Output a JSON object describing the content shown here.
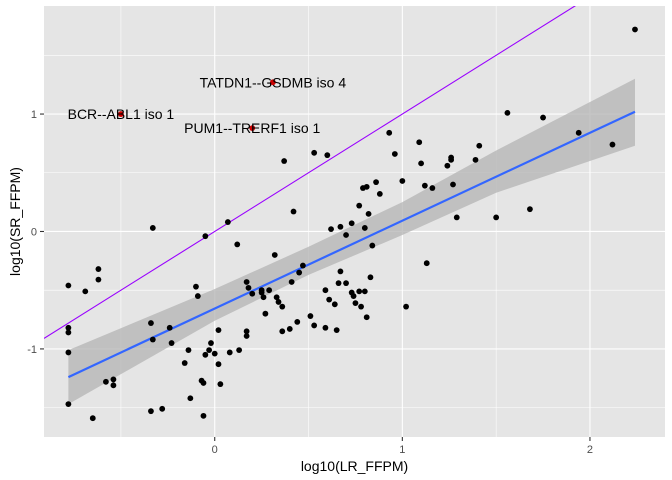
{
  "chart_data": {
    "type": "scatter",
    "xlabel": "log10(LR_FFPM)",
    "ylabel": "log10(SR_FFPM)",
    "xlim": [
      -0.91,
      2.4
    ],
    "ylim": [
      -1.75,
      1.92
    ],
    "x_ticks": [
      0,
      1,
      2
    ],
    "x_tick_labels": [
      "0",
      "1",
      "2"
    ],
    "y_ticks": [
      -1,
      0,
      1
    ],
    "y_tick_labels": [
      "-1",
      "0",
      "1"
    ],
    "grid": true,
    "panel_background": "#e5e5e5",
    "grid_color": "#ffffff",
    "point_color": "#000000",
    "highlight_color": "#cc0000",
    "reference_line": {
      "slope": 1,
      "intercept": 0,
      "color": "#9900ff"
    },
    "fit_line": {
      "x0": -0.78,
      "y0": -1.24,
      "x1": 2.24,
      "y1": 1.02,
      "color": "#3366ff"
    },
    "confidence_band": {
      "color": "#b3b3b3",
      "upper": [
        [
          -0.78,
          -1.01
        ],
        [
          0.0,
          -0.49
        ],
        [
          0.5,
          -0.13
        ],
        [
          1.0,
          0.25
        ],
        [
          1.5,
          0.69
        ],
        [
          2.24,
          1.3
        ]
      ],
      "lower": [
        [
          -0.78,
          -1.47
        ],
        [
          0.0,
          -0.76
        ],
        [
          0.5,
          -0.37
        ],
        [
          1.0,
          -0.03
        ],
        [
          1.5,
          0.33
        ],
        [
          2.24,
          0.73
        ]
      ]
    },
    "points": [
      [
        -0.78,
        -0.46
      ],
      [
        -0.78,
        -0.82
      ],
      [
        -0.78,
        -0.86
      ],
      [
        -0.78,
        -1.03
      ],
      [
        -0.78,
        -1.47
      ],
      [
        -0.69,
        -0.51
      ],
      [
        -0.62,
        -0.32
      ],
      [
        -0.62,
        -0.41
      ],
      [
        -0.58,
        -1.28
      ],
      [
        -0.54,
        -1.26
      ],
      [
        -0.54,
        -1.31
      ],
      [
        -0.65,
        -1.59
      ],
      [
        -0.33,
        0.03
      ],
      [
        -0.34,
        -0.78
      ],
      [
        -0.33,
        -0.92
      ],
      [
        -0.34,
        -1.53
      ],
      [
        -0.28,
        -1.51
      ],
      [
        -0.24,
        -0.82
      ],
      [
        -0.23,
        -0.95
      ],
      [
        -0.16,
        -1.12
      ],
      [
        -0.14,
        -1.01
      ],
      [
        -0.13,
        -1.42
      ],
      [
        -0.1,
        -0.47
      ],
      [
        -0.09,
        -0.55
      ],
      [
        -0.07,
        -1.27
      ],
      [
        -0.06,
        -1.29
      ],
      [
        -0.06,
        -1.57
      ],
      [
        -0.05,
        -0.04
      ],
      [
        -0.05,
        -1.05
      ],
      [
        -0.03,
        -1.01
      ],
      [
        -0.02,
        -0.95
      ],
      [
        0.0,
        -1.04
      ],
      [
        0.02,
        -0.84
      ],
      [
        0.02,
        -1.13
      ],
      [
        0.03,
        -1.3
      ],
      [
        0.07,
        0.08
      ],
      [
        0.08,
        -1.03
      ],
      [
        0.12,
        -0.11
      ],
      [
        0.13,
        -1.01
      ],
      [
        0.17,
        -0.85
      ],
      [
        0.17,
        -0.89
      ],
      [
        0.17,
        -0.43
      ],
      [
        0.18,
        -0.48
      ],
      [
        0.2,
        -0.53
      ],
      [
        0.25,
        -0.5
      ],
      [
        0.25,
        -0.52
      ],
      [
        0.26,
        -0.56
      ],
      [
        0.27,
        -0.7
      ],
      [
        0.29,
        -0.5
      ],
      [
        0.32,
        -0.2
      ],
      [
        0.33,
        -0.56
      ],
      [
        0.34,
        -0.6
      ],
      [
        0.36,
        -0.64
      ],
      [
        0.36,
        -0.85
      ],
      [
        0.37,
        0.6
      ],
      [
        0.4,
        -0.83
      ],
      [
        0.41,
        -0.43
      ],
      [
        0.42,
        0.17
      ],
      [
        0.44,
        -0.77
      ],
      [
        0.45,
        -0.35
      ],
      [
        0.47,
        -0.29
      ],
      [
        0.51,
        -0.72
      ],
      [
        0.53,
        0.67
      ],
      [
        0.53,
        -0.8
      ],
      [
        0.59,
        -0.5
      ],
      [
        0.59,
        -0.82
      ],
      [
        0.6,
        0.65
      ],
      [
        0.61,
        -0.58
      ],
      [
        0.62,
        0.02
      ],
      [
        0.64,
        -0.62
      ],
      [
        0.65,
        -0.84
      ],
      [
        0.66,
        -0.44
      ],
      [
        0.67,
        -0.34
      ],
      [
        0.67,
        0.04
      ],
      [
        0.7,
        -0.03
      ],
      [
        0.7,
        -0.44
      ],
      [
        0.73,
        0.07
      ],
      [
        0.73,
        -0.52
      ],
      [
        0.74,
        -0.55
      ],
      [
        0.75,
        -0.61
      ],
      [
        0.77,
        0.22
      ],
      [
        0.77,
        -0.51
      ],
      [
        0.78,
        -0.64
      ],
      [
        0.79,
        0.37
      ],
      [
        0.8,
        0.03
      ],
      [
        0.8,
        -0.51
      ],
      [
        0.81,
        -0.73
      ],
      [
        0.81,
        0.38
      ],
      [
        0.82,
        0.15
      ],
      [
        0.83,
        -0.39
      ],
      [
        0.84,
        -0.12
      ],
      [
        0.86,
        0.42
      ],
      [
        0.88,
        0.32
      ],
      [
        0.93,
        0.84
      ],
      [
        0.96,
        0.66
      ],
      [
        1.0,
        0.43
      ],
      [
        1.02,
        -0.64
      ],
      [
        1.09,
        0.76
      ],
      [
        1.1,
        0.58
      ],
      [
        1.12,
        0.39
      ],
      [
        1.13,
        -0.27
      ],
      [
        1.16,
        0.37
      ],
      [
        1.24,
        0.56
      ],
      [
        1.26,
        0.61
      ],
      [
        1.26,
        0.63
      ],
      [
        1.27,
        0.4
      ],
      [
        1.29,
        0.12
      ],
      [
        1.39,
        0.61
      ],
      [
        1.41,
        0.73
      ],
      [
        1.5,
        0.12
      ],
      [
        1.56,
        1.01
      ],
      [
        1.68,
        0.19
      ],
      [
        1.75,
        0.97
      ],
      [
        1.94,
        0.84
      ],
      [
        2.12,
        0.74
      ],
      [
        2.24,
        1.72
      ]
    ],
    "highlights": [
      {
        "label": "TATDN1--GSDMB iso 4",
        "x": 0.31,
        "y": 1.27
      },
      {
        "label": "BCR--ABL1 iso 1",
        "x": -0.5,
        "y": 1.0
      },
      {
        "label": "PUM1--TRERF1 iso 1",
        "x": 0.2,
        "y": 0.88
      }
    ]
  }
}
